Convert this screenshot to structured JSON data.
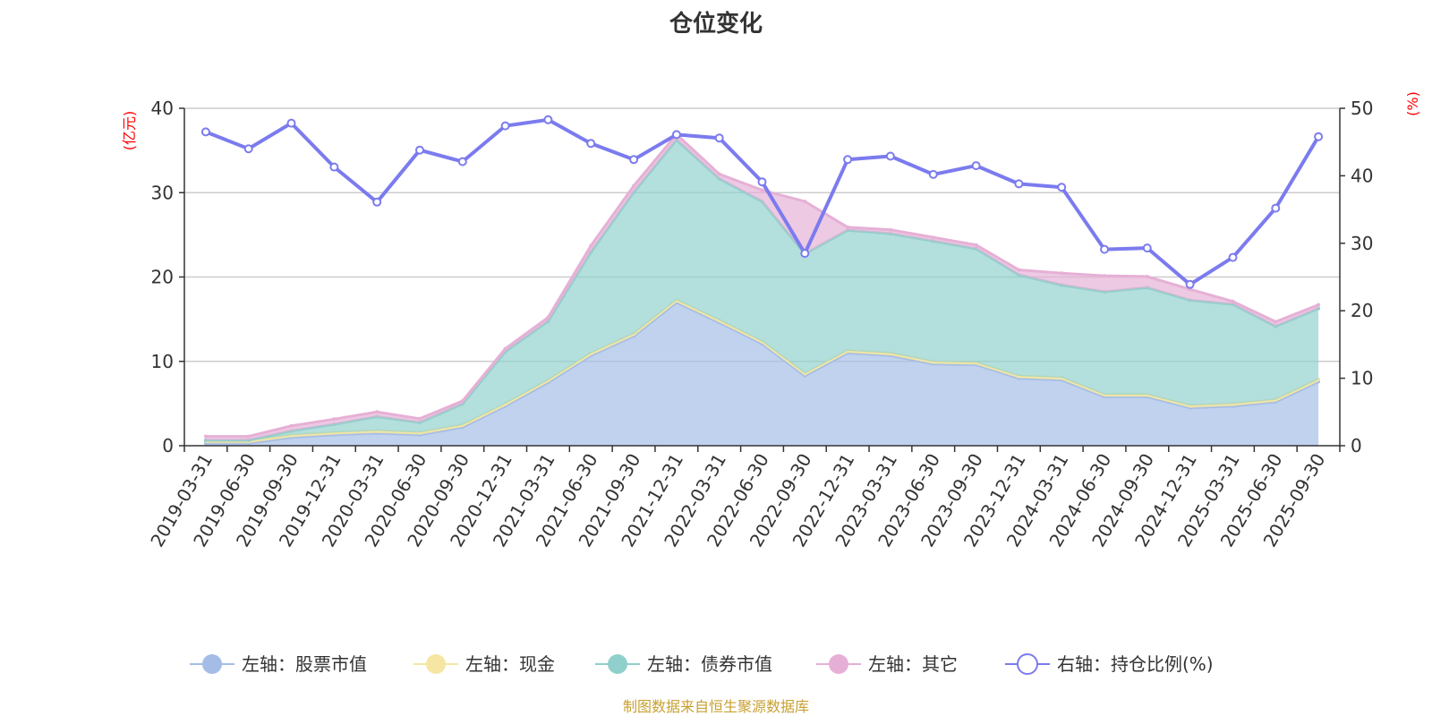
{
  "chart_data": {
    "type": "area",
    "title": "仓位变化",
    "categories": [
      "2019-03-31",
      "2019-06-30",
      "2019-09-30",
      "2019-12-31",
      "2020-03-31",
      "2020-06-30",
      "2020-09-30",
      "2020-12-31",
      "2021-03-31",
      "2021-06-30",
      "2021-09-30",
      "2021-12-31",
      "2022-03-31",
      "2022-06-30",
      "2022-09-30",
      "2022-12-31",
      "2023-03-31",
      "2023-06-30",
      "2023-09-30",
      "2023-12-31",
      "2024-03-31",
      "2024-06-30",
      "2024-09-30",
      "2024-12-31",
      "2025-03-31",
      "2025-06-30",
      "2025-09-30"
    ],
    "left_axis": {
      "unit": "(亿元)",
      "ylim": [
        0,
        40
      ],
      "ticks": [
        0,
        10,
        20,
        30,
        40
      ]
    },
    "right_axis": {
      "unit": "(%)",
      "ylim": [
        0,
        50
      ],
      "ticks": [
        0,
        10,
        20,
        30,
        40,
        50
      ]
    },
    "series": [
      {
        "name": "左轴：股票市值",
        "axis": "left",
        "kind": "stacked-area",
        "color": "#a3bde6",
        "values": [
          0.3,
          0.3,
          1.0,
          1.3,
          1.5,
          1.3,
          2.2,
          4.7,
          7.5,
          10.7,
          13.0,
          17.0,
          14.6,
          12.1,
          8.3,
          11.0,
          10.7,
          9.7,
          9.6,
          8.0,
          7.8,
          5.8,
          5.8,
          4.5,
          4.7,
          5.2,
          7.6
        ]
      },
      {
        "name": "左轴：现金",
        "axis": "left",
        "kind": "stacked-area",
        "color": "#f5e6a3",
        "values": [
          0.25,
          0.25,
          0.25,
          0.25,
          0.25,
          0.25,
          0.25,
          0.25,
          0.25,
          0.25,
          0.25,
          0.25,
          0.25,
          0.25,
          0.25,
          0.25,
          0.25,
          0.25,
          0.25,
          0.25,
          0.25,
          0.25,
          0.25,
          0.25,
          0.25,
          0.25,
          0.25
        ]
      },
      {
        "name": "左轴：债券市值",
        "axis": "left",
        "kind": "stacked-area",
        "color": "#8fd0cc",
        "values": [
          0.1,
          0.1,
          0.5,
          1.0,
          1.7,
          1.2,
          2.5,
          6.2,
          7.0,
          12.0,
          16.8,
          19.0,
          16.8,
          16.6,
          14.2,
          14.3,
          14.2,
          14.3,
          13.5,
          12.0,
          11.0,
          12.2,
          12.7,
          12.5,
          11.8,
          8.7,
          8.4
        ]
      },
      {
        "name": "左轴：其它",
        "axis": "left",
        "kind": "stacked-area",
        "color": "#e6b0d6",
        "values": [
          0.45,
          0.45,
          0.6,
          0.6,
          0.55,
          0.45,
          0.35,
          0.35,
          0.45,
          0.75,
          0.75,
          0.65,
          0.55,
          1.35,
          6.2,
          0.35,
          0.45,
          0.45,
          0.45,
          0.6,
          1.4,
          1.9,
          1.3,
          1.3,
          0.35,
          0.55,
          0.45
        ]
      },
      {
        "name": "右轴：持仓比例(%)",
        "axis": "right",
        "kind": "line",
        "color": "#7b7bef",
        "values": [
          46.5,
          44.0,
          47.8,
          41.3,
          36.1,
          43.8,
          42.1,
          47.4,
          48.3,
          44.8,
          42.4,
          46.1,
          45.6,
          39.1,
          28.5,
          42.4,
          42.9,
          40.2,
          41.5,
          38.8,
          38.3,
          29.1,
          29.3,
          23.9,
          27.9,
          35.2,
          45.8
        ]
      }
    ]
  },
  "footer": {
    "source": "制图数据来自恒生聚源数据库"
  }
}
